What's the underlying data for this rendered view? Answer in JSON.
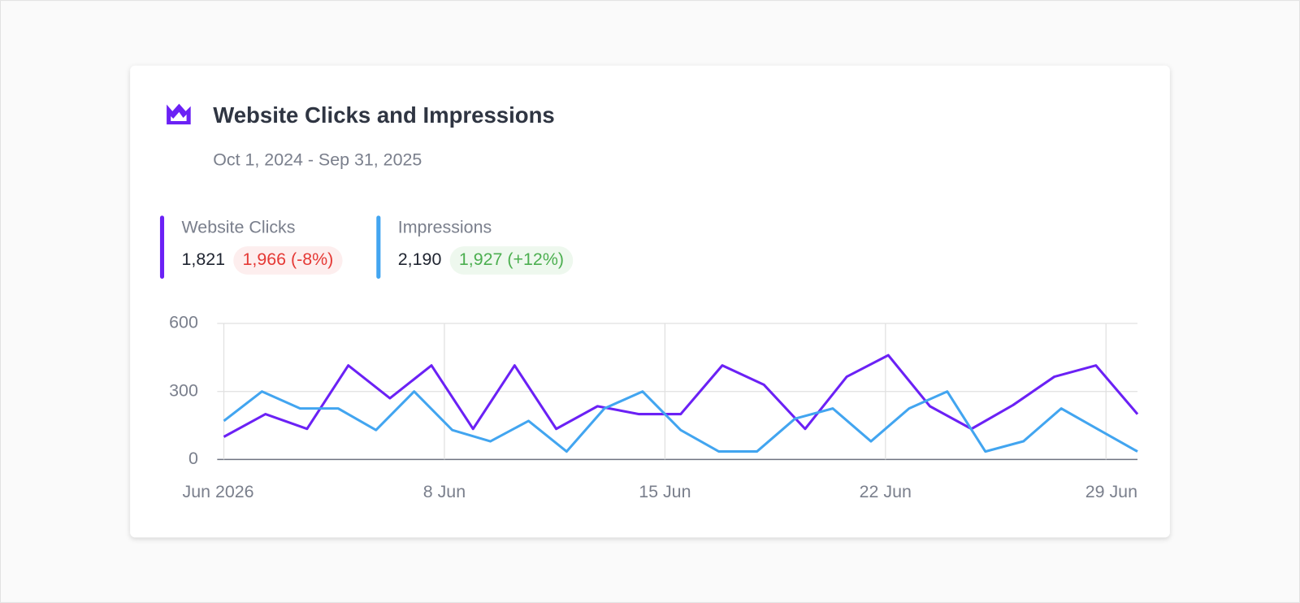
{
  "header": {
    "title": "Website Clicks and Impressions",
    "subtitle": "Oct 1, 2024 - Sep 31, 2025"
  },
  "kpis": [
    {
      "value": "1,821",
      "compare": "1,966 (-8%)",
      "trend": "down"
    },
    {
      "value": "2,190",
      "compare": "1,927 (+12%)",
      "trend": "up"
    }
  ],
  "chart_data": {
    "type": "line",
    "xlim": [
      1,
      30
    ],
    "xticks": [
      {
        "value": 1,
        "label": "Jun 2026"
      },
      {
        "value": 8,
        "label": "8 Jun"
      },
      {
        "value": 15,
        "label": "15 Jun"
      },
      {
        "value": 22,
        "label": "22 Jun"
      },
      {
        "value": 29,
        "label": "29 Jun"
      }
    ],
    "ylim": [
      0,
      600
    ],
    "yticks": [
      0,
      300,
      600
    ],
    "grid": true,
    "series": [
      {
        "name": "Website Clicks",
        "color": "#6b21f5",
        "x": [
          1,
          2.32,
          3.64,
          4.95,
          6.27,
          7.59,
          8.91,
          10.23,
          11.55,
          12.86,
          14.18,
          15.5,
          16.82,
          18.14,
          19.45,
          20.77,
          22.09,
          23.41,
          24.73,
          26.05,
          27.36,
          28.68,
          30
        ],
        "values": [
          100,
          200,
          135,
          415,
          270,
          415,
          135,
          415,
          135,
          235,
          200,
          200,
          415,
          330,
          135,
          365,
          460,
          235,
          135,
          240,
          365,
          415,
          200
        ]
      },
      {
        "name": "Impressions",
        "color": "#42a5f0",
        "x": [
          1,
          2.21,
          3.42,
          4.63,
          5.83,
          7.04,
          8.25,
          9.46,
          10.67,
          11.88,
          13.08,
          14.29,
          15.5,
          16.71,
          17.92,
          19.13,
          20.33,
          21.54,
          22.75,
          23.96,
          25.17,
          26.38,
          27.58,
          28.79,
          30
        ],
        "values": [
          170,
          300,
          225,
          225,
          130,
          300,
          130,
          80,
          170,
          35,
          225,
          300,
          130,
          35,
          35,
          180,
          225,
          80,
          225,
          300,
          35,
          80,
          225,
          130,
          35
        ]
      }
    ]
  }
}
